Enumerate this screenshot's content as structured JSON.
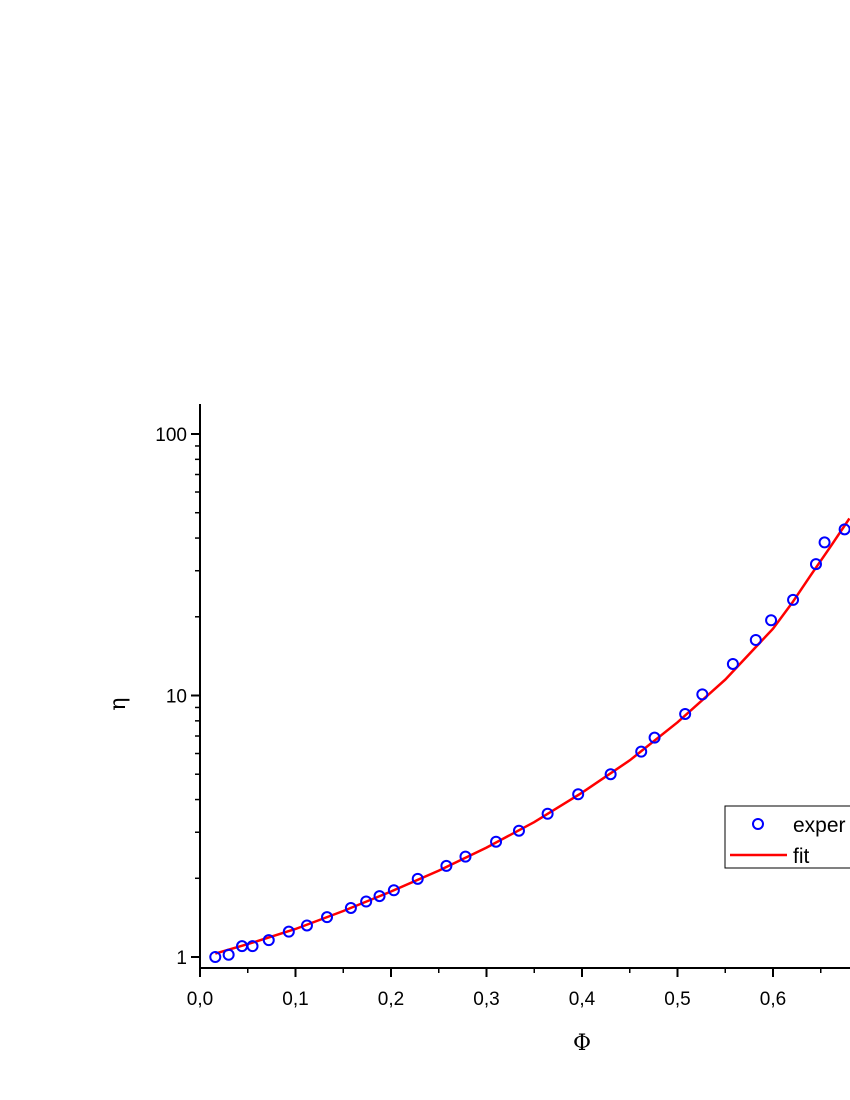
{
  "chart_data": {
    "type": "scatter",
    "xlabel": "Φ",
    "ylabel": "η",
    "xlim": [
      0.0,
      0.68
    ],
    "ylim": [
      0.88,
      130
    ],
    "yscale": "log",
    "x_ticks": [
      "0,0",
      "0,1",
      "0,2",
      "0,3",
      "0,4",
      "0,5",
      "0,6"
    ],
    "x_tick_values": [
      0.0,
      0.1,
      0.2,
      0.3,
      0.4,
      0.5,
      0.6
    ],
    "y_ticks": [
      "1",
      "10",
      "100"
    ],
    "y_tick_values": [
      1,
      10,
      100
    ],
    "legend_position": "right",
    "series": [
      {
        "name": "exper",
        "kind": "markers",
        "color": "#0000ff",
        "x": [
          0.016,
          0.03,
          0.044,
          0.055,
          0.072,
          0.093,
          0.112,
          0.133,
          0.158,
          0.174,
          0.188,
          0.203,
          0.228,
          0.258,
          0.278,
          0.31,
          0.334,
          0.364,
          0.396,
          0.43,
          0.462,
          0.476,
          0.508,
          0.526,
          0.558,
          0.582,
          0.598,
          0.621,
          0.645,
          0.654,
          0.675
        ],
        "y": [
          1.0,
          1.02,
          1.1,
          1.1,
          1.16,
          1.25,
          1.32,
          1.42,
          1.54,
          1.63,
          1.71,
          1.8,
          1.99,
          2.23,
          2.42,
          2.76,
          3.04,
          3.53,
          4.19,
          5.0,
          6.1,
          6.9,
          8.5,
          10.1,
          13.2,
          16.3,
          19.4,
          23.2,
          31.8,
          38.5,
          43.2
        ]
      },
      {
        "name": "fit",
        "kind": "line",
        "color": "#ff0000",
        "x": [
          0.016,
          0.05,
          0.1,
          0.15,
          0.2,
          0.25,
          0.3,
          0.35,
          0.4,
          0.45,
          0.5,
          0.55,
          0.6,
          0.62,
          0.64,
          0.66,
          0.68
        ],
        "y": [
          1.03,
          1.12,
          1.28,
          1.5,
          1.78,
          2.14,
          2.62,
          3.28,
          4.25,
          5.65,
          7.9,
          11.5,
          18.0,
          22.6,
          29.0,
          37.0,
          47.5
        ]
      }
    ]
  }
}
